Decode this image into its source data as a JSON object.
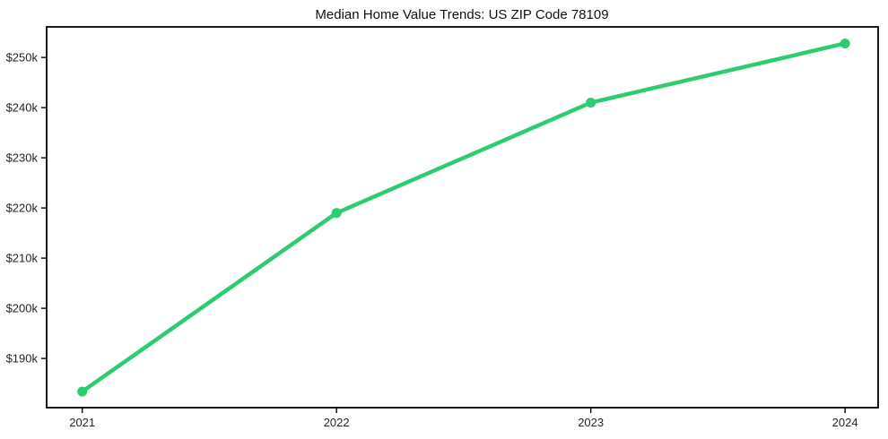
{
  "chart_data": {
    "type": "line",
    "title": "Median Home Value Trends: US ZIP Code 78109",
    "xlabel": "",
    "ylabel": "",
    "x": [
      2021,
      2022,
      2023,
      2024
    ],
    "x_tick_labels": [
      "2021",
      "2022",
      "2023",
      "2024"
    ],
    "values": [
      183400,
      219000,
      241000,
      252800
    ],
    "y_ticks": [
      190000,
      200000,
      210000,
      220000,
      230000,
      240000,
      250000
    ],
    "y_tick_labels": [
      "$190k",
      "$200k",
      "$210k",
      "$220k",
      "$230k",
      "$240k",
      "$250k"
    ],
    "xlim": [
      2020.86,
      2024.13
    ],
    "ylim": [
      180200,
      256100
    ],
    "grid": false,
    "legend": "none",
    "marker": "circle",
    "line_color": "#2ecc71",
    "axis_color": "#000000",
    "tick_label_color": "#262626",
    "background_color": "#ffffff"
  }
}
